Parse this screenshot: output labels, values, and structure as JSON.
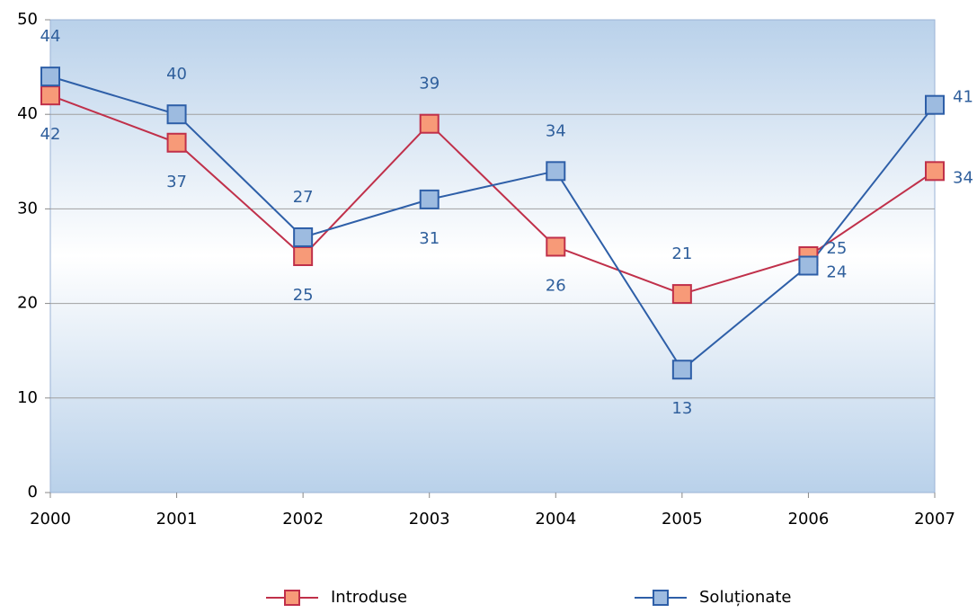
{
  "chart_data": {
    "type": "line",
    "categories": [
      "2000",
      "2001",
      "2002",
      "2003",
      "2004",
      "2005",
      "2006",
      "2007"
    ],
    "series": [
      {
        "name": "Introduse",
        "color": "#c0304a",
        "marker_fill": "#f79a78",
        "values": [
          42,
          37,
          25,
          39,
          26,
          21,
          25,
          34
        ]
      },
      {
        "name": "Soluționate",
        "color": "#2e5fa8",
        "marker_fill": "#9dbbe0",
        "values": [
          44,
          40,
          27,
          31,
          34,
          13,
          24,
          41
        ]
      }
    ],
    "ylim": [
      0,
      50
    ],
    "yticks": [
      0,
      10,
      20,
      30,
      40,
      50
    ],
    "grid": true,
    "legend": "bottom"
  }
}
